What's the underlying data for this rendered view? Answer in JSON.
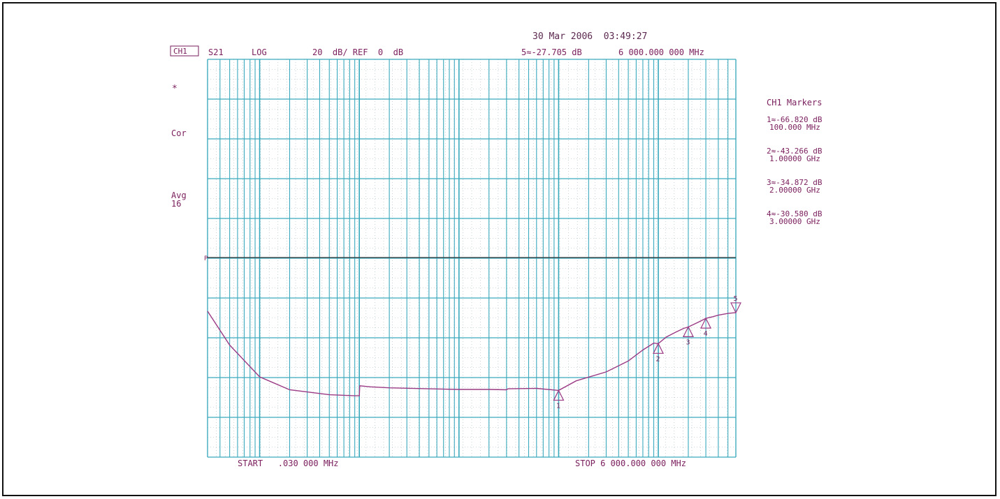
{
  "header": {
    "timestamp": "30 Mar 2006  03:49:27",
    "channel": "CH1",
    "param": "S21",
    "format": "LOG",
    "scale": "20  dB/ REF  0  dB",
    "active_marker": "5≈-27.705 dB",
    "active_freq": "6 000.000 000 MHz"
  },
  "side_labels": {
    "marker_dot": "*",
    "cor": "Cor",
    "avg": "Avg",
    "avg_count": "16",
    "ref_marker": "P"
  },
  "footer": {
    "start": "START   .030 000 MHz",
    "stop": "STOP 6 000.000 000 MHz"
  },
  "markers_panel": {
    "title": "CH1 Markers",
    "entries": [
      {
        "value": "1≈-66.820 dB",
        "freq": "100.000 MHz"
      },
      {
        "value": "2≈-43.266 dB",
        "freq": "1.00000 GHz"
      },
      {
        "value": "3≈-34.872 dB",
        "freq": "2.00000 GHz"
      },
      {
        "value": "4≈-30.580 dB",
        "freq": "3.00000 GHz"
      }
    ]
  },
  "colors": {
    "grid": "#3aa9bd",
    "grid_dots": "#9fb8bf",
    "text": "#7a1e5c",
    "trace": "#9b3a84",
    "ref_line": "#333333",
    "frame": "#111111"
  },
  "chart_data": {
    "type": "line",
    "x_scale": "log",
    "xlim_mhz": [
      0.03,
      6000
    ],
    "ref_db": 0,
    "db_per_div": 20,
    "ylim_db": [
      -100,
      100
    ],
    "series": [
      {
        "x_mhz": [
          0.03,
          0.05,
          0.1,
          0.2,
          0.5,
          0.9,
          1.0,
          1.01,
          1.3,
          2,
          5,
          10,
          20,
          30,
          31,
          60,
          100,
          150,
          300,
          500,
          700,
          900,
          1000,
          1200,
          1500,
          1800,
          2000,
          2500,
          3000,
          3500,
          4000,
          5000,
          6000
        ],
        "y_db": [
          -27.0,
          -44.0,
          -60.0,
          -66.5,
          -69.0,
          -69.5,
          -69.5,
          -64.5,
          -65.0,
          -65.5,
          -66.0,
          -66.3,
          -66.3,
          -66.5,
          -66.0,
          -65.8,
          -66.8,
          -62.0,
          -57.5,
          -52.0,
          -46.5,
          -43.0,
          -43.3,
          -40.0,
          -37.5,
          -35.6,
          -34.9,
          -32.6,
          -30.6,
          -29.8,
          -29.0,
          -28.1,
          -27.7
        ]
      }
    ],
    "markers": [
      {
        "id": "1",
        "x_mhz": 100,
        "y_db": -66.82
      },
      {
        "id": "2",
        "x_mhz": 1000,
        "y_db": -43.266
      },
      {
        "id": "3",
        "x_mhz": 2000,
        "y_db": -34.872
      },
      {
        "id": "4",
        "x_mhz": 3000,
        "y_db": -30.58
      },
      {
        "id": "5",
        "x_mhz": 6000,
        "y_db": -27.705
      }
    ]
  }
}
